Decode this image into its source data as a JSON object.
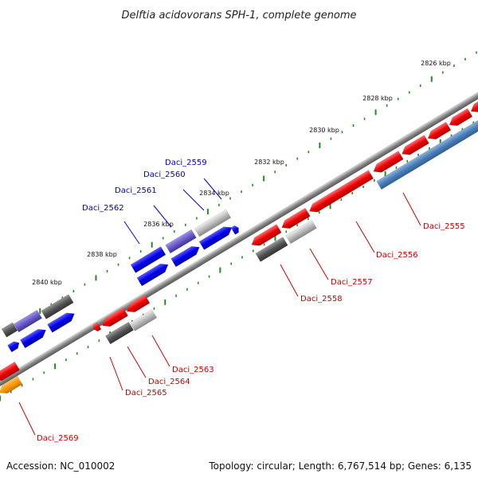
{
  "title": "Delftia acidovorans SPH-1, complete genome",
  "colors": {
    "forward_gene": "#0000ee",
    "reverse_gene": "#ee0000",
    "pseudo_gene": "#555555",
    "rna_gene": "#bbbbbb",
    "highlight_gene": "#4a7fb8",
    "orange_gene": "#ff9900",
    "purple_gene": "#6a5acd",
    "tick": "#228b22",
    "backbone": "#888888",
    "forward_label": "#0000cc",
    "reverse_label": "#cc0000"
  },
  "scale_ticks": [
    {
      "label": "2826 kbp"
    },
    {
      "label": "2828 kbp"
    },
    {
      "label": "2830 kbp"
    },
    {
      "label": "2832 kbp"
    },
    {
      "label": "2834 kbp"
    },
    {
      "label": "2836 kbp"
    },
    {
      "label": "2838 kbp"
    },
    {
      "label": "2840 kbp"
    }
  ],
  "forward_labels": [
    {
      "text": "Daci_2559"
    },
    {
      "text": "Daci_2560"
    },
    {
      "text": "Daci_2561"
    },
    {
      "text": "Daci_2562"
    }
  ],
  "reverse_labels": [
    {
      "text": "Daci_2555"
    },
    {
      "text": "Daci_2556"
    },
    {
      "text": "Daci_2557"
    },
    {
      "text": "Daci_2558"
    },
    {
      "text": "Daci_2563"
    },
    {
      "text": "Daci_2564"
    },
    {
      "text": "Daci_2565"
    },
    {
      "text": "Daci_2569"
    }
  ],
  "footer": {
    "accession": "Accession: NC_010002",
    "summary": "Topology: circular; Length: 6,767,514 bp; Genes: 6,135"
  }
}
